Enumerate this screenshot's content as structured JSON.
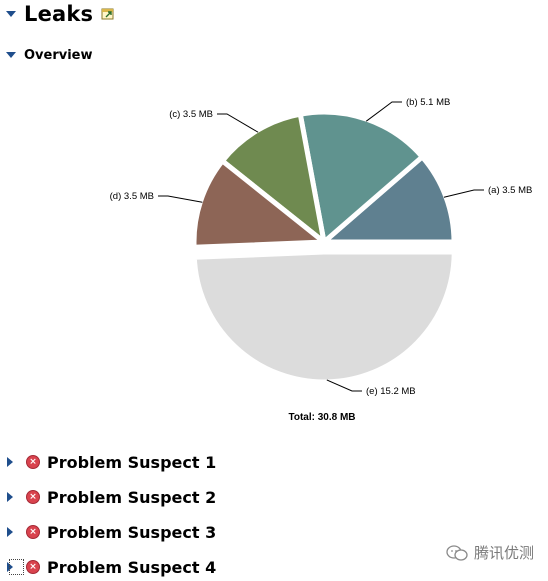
{
  "leaks": {
    "title": "Leaks"
  },
  "overview": {
    "title": "Overview"
  },
  "chart_data": {
    "type": "pie",
    "slices": [
      {
        "label": "(a)  3.5 MB",
        "value": 3.5,
        "color": "#5f8090"
      },
      {
        "label": "(b)  5.1 MB",
        "value": 5.1,
        "color": "#60938f"
      },
      {
        "label": "(c)  3.5 MB",
        "value": 3.5,
        "color": "#6f8a50"
      },
      {
        "label": "(d)  3.5 MB",
        "value": 3.5,
        "color": "#8d6556"
      },
      {
        "label": "(e)  15.2 MB",
        "value": 15.2,
        "color": "#dcdcdc"
      }
    ],
    "total_label": "Total: 30.8 MB"
  },
  "suspects": [
    {
      "label": "Problem Suspect 1"
    },
    {
      "label": "Problem Suspect 2"
    },
    {
      "label": "Problem Suspect 3"
    },
    {
      "label": "Problem Suspect 4"
    }
  ],
  "watermark": {
    "text": "腾讯优测"
  }
}
